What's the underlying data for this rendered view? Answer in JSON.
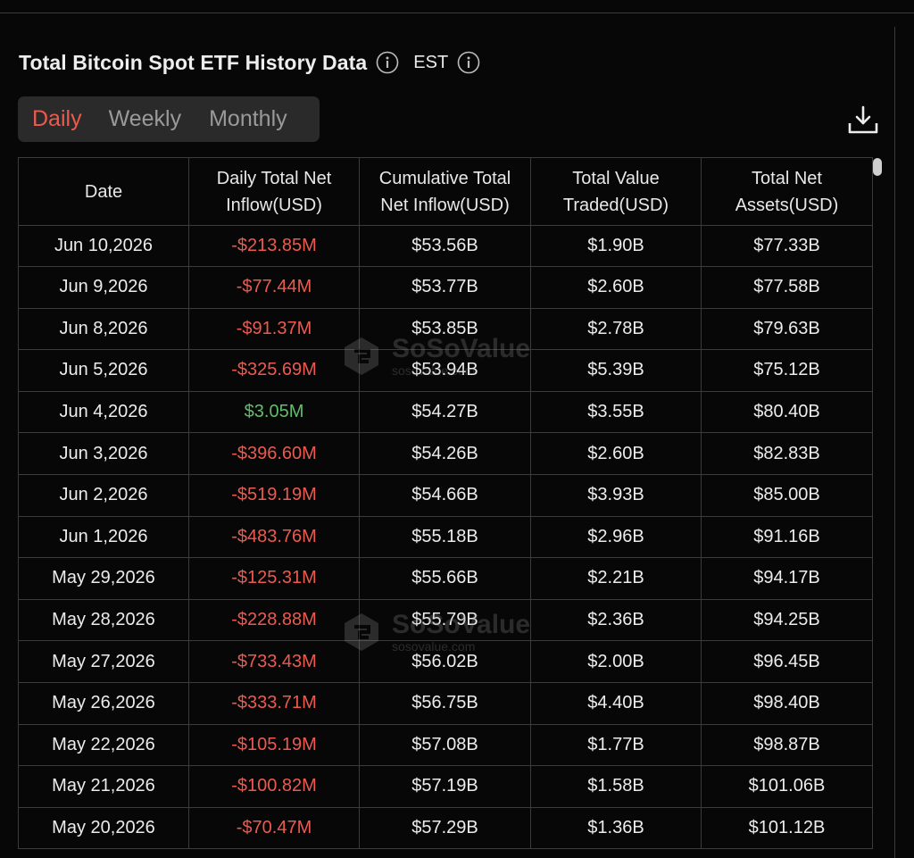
{
  "title": "Total Bitcoin Spot ETF History Data",
  "timezone": "EST",
  "tabs": [
    {
      "label": "Daily",
      "active": true
    },
    {
      "label": "Weekly",
      "active": false
    },
    {
      "label": "Monthly",
      "active": false
    }
  ],
  "columns": [
    [
      "Date"
    ],
    [
      "Daily Total Net",
      "Inflow(USD)"
    ],
    [
      "Cumulative Total",
      "Net Inflow(USD)"
    ],
    [
      "Total Value",
      "Traded(USD)"
    ],
    [
      "Total Net",
      "Assets(USD)"
    ]
  ],
  "rows": [
    [
      "Jun 10,2026",
      "-$213.85M",
      "$53.56B",
      "$1.90B",
      "$77.33B"
    ],
    [
      "Jun 9,2026",
      "-$77.44M",
      "$53.77B",
      "$2.60B",
      "$77.58B"
    ],
    [
      "Jun 8,2026",
      "-$91.37M",
      "$53.85B",
      "$2.78B",
      "$79.63B"
    ],
    [
      "Jun 5,2026",
      "-$325.69M",
      "$53.94B",
      "$5.39B",
      "$75.12B"
    ],
    [
      "Jun 4,2026",
      "$3.05M",
      "$54.27B",
      "$3.55B",
      "$80.40B"
    ],
    [
      "Jun 3,2026",
      "-$396.60M",
      "$54.26B",
      "$2.60B",
      "$82.83B"
    ],
    [
      "Jun 2,2026",
      "-$519.19M",
      "$54.66B",
      "$3.93B",
      "$85.00B"
    ],
    [
      "Jun 1,2026",
      "-$483.76M",
      "$55.18B",
      "$2.96B",
      "$91.16B"
    ],
    [
      "May 29,2026",
      "-$125.31M",
      "$55.66B",
      "$2.21B",
      "$94.17B"
    ],
    [
      "May 28,2026",
      "-$228.88M",
      "$55.79B",
      "$2.36B",
      "$94.25B"
    ],
    [
      "May 27,2026",
      "-$733.43M",
      "$56.02B",
      "$2.00B",
      "$96.45B"
    ],
    [
      "May 26,2026",
      "-$333.71M",
      "$56.75B",
      "$4.40B",
      "$98.40B"
    ],
    [
      "May 22,2026",
      "-$105.19M",
      "$57.08B",
      "$1.77B",
      "$98.87B"
    ],
    [
      "May 21,2026",
      "-$100.82M",
      "$57.19B",
      "$1.58B",
      "$101.06B"
    ],
    [
      "May 20,2026",
      "-$70.47M",
      "$57.29B",
      "$1.36B",
      "$101.12B"
    ]
  ],
  "watermark": {
    "brand": "SoSoValue",
    "site": "sosovalue.com"
  },
  "colors": {
    "negative": "#ec5a4f",
    "positive": "#5fbf6b",
    "active_tab": "#ec5a4f",
    "background": "#070707"
  },
  "icons": {
    "title_info": "info-icon",
    "timezone_info": "info-icon",
    "download": "download-icon",
    "watermark_logo": "sosovalue-logo-icon"
  }
}
